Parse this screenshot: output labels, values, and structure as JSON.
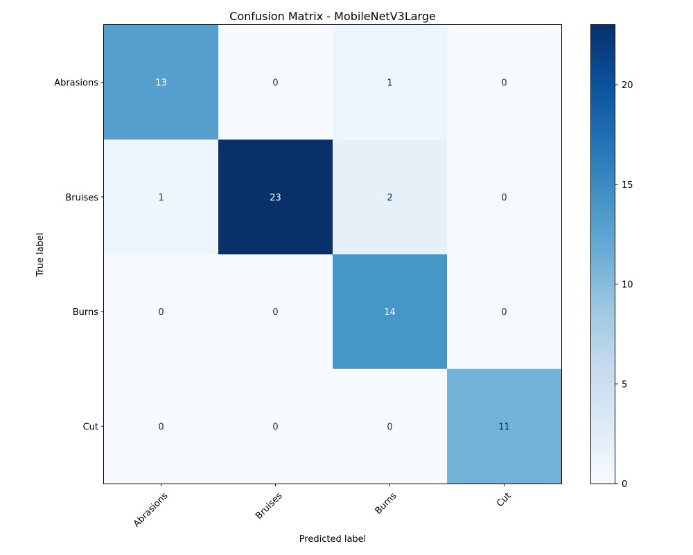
{
  "chart_data": {
    "type": "heatmap",
    "title": "Confusion Matrix - MobileNetV3Large",
    "xlabel": "Predicted label",
    "ylabel": "True label",
    "x_categories": [
      "Abrasions",
      "Bruises",
      "Burns",
      "Cut"
    ],
    "y_categories": [
      "Abrasions",
      "Bruises",
      "Burns",
      "Cut"
    ],
    "values": [
      [
        13,
        0,
        1,
        0
      ],
      [
        1,
        23,
        2,
        0
      ],
      [
        0,
        0,
        14,
        0
      ],
      [
        0,
        0,
        0,
        11
      ]
    ],
    "colormap": "Blues",
    "colorbar": {
      "min": 0,
      "max": 23,
      "ticks": [
        0,
        5,
        10,
        15,
        20
      ],
      "tick_labels": [
        "0",
        "5",
        "10",
        "15",
        "20"
      ]
    },
    "x_tick_rotation_degrees": 45
  }
}
